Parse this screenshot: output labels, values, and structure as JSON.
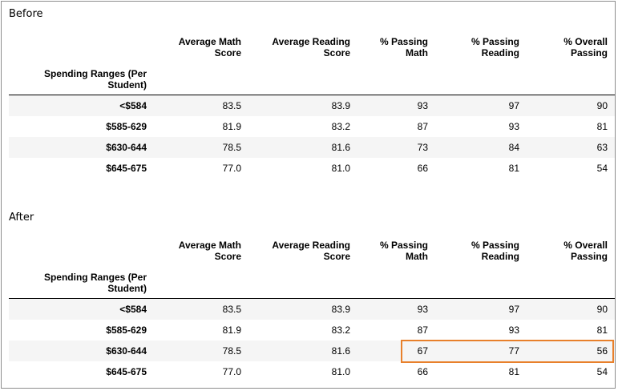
{
  "columns": [
    "Average Math Score",
    "Average Reading Score",
    "% Passing Math",
    "% Passing Reading",
    "% Overall Passing"
  ],
  "columns_display": [
    [
      "Average Math",
      "Score"
    ],
    [
      "Average Reading",
      "Score"
    ],
    [
      "% Passing",
      "Math"
    ],
    [
      "% Passing",
      "Reading"
    ],
    [
      "% Overall",
      "Passing"
    ]
  ],
  "index_name": [
    "Spending Ranges (Per",
    "Student)"
  ],
  "highlight_color": "#e8802b",
  "tables": [
    {
      "title": "Before",
      "rows": [
        {
          "label": "<$584",
          "values": [
            "83.5",
            "83.9",
            "93",
            "97",
            "90"
          ]
        },
        {
          "label": "$585-629",
          "values": [
            "81.9",
            "83.2",
            "87",
            "93",
            "81"
          ]
        },
        {
          "label": "$630-644",
          "values": [
            "78.5",
            "81.6",
            "73",
            "84",
            "63"
          ]
        },
        {
          "label": "$645-675",
          "values": [
            "77.0",
            "81.0",
            "66",
            "81",
            "54"
          ]
        }
      ]
    },
    {
      "title": "After",
      "rows": [
        {
          "label": "<$584",
          "values": [
            "83.5",
            "83.9",
            "93",
            "97",
            "90"
          ]
        },
        {
          "label": "$585-629",
          "values": [
            "81.9",
            "83.2",
            "87",
            "93",
            "81"
          ]
        },
        {
          "label": "$630-644",
          "values": [
            "78.5",
            "81.6",
            "67",
            "77",
            "56"
          ]
        },
        {
          "label": "$645-675",
          "values": [
            "77.0",
            "81.0",
            "66",
            "81",
            "54"
          ]
        }
      ]
    }
  ]
}
